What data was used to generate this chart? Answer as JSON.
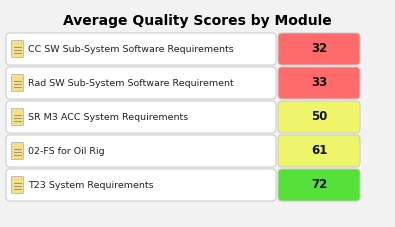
{
  "title": "Average Quality Scores by Module",
  "title_fontsize": 10,
  "title_fontweight": "bold",
  "background_color": "#f2f2f2",
  "modules": [
    "CC SW Sub-System Software Requirements",
    "Rad SW Sub-System Software Requirement",
    "SR M3 ACC System Requirements",
    "02-FS for Oil Rig",
    "T23 System Requirements"
  ],
  "scores": [
    32,
    33,
    50,
    61,
    72
  ],
  "bar_colors": [
    "#ff6b6b",
    "#ff6b6b",
    "#eef56a",
    "#eef56a",
    "#55e03a"
  ],
  "text_color": "#222222",
  "row_bg_color": "#ffffff",
  "row_border_color": "#c8c8c8",
  "label_fontsize": 6.8,
  "score_fontsize": 8.5
}
